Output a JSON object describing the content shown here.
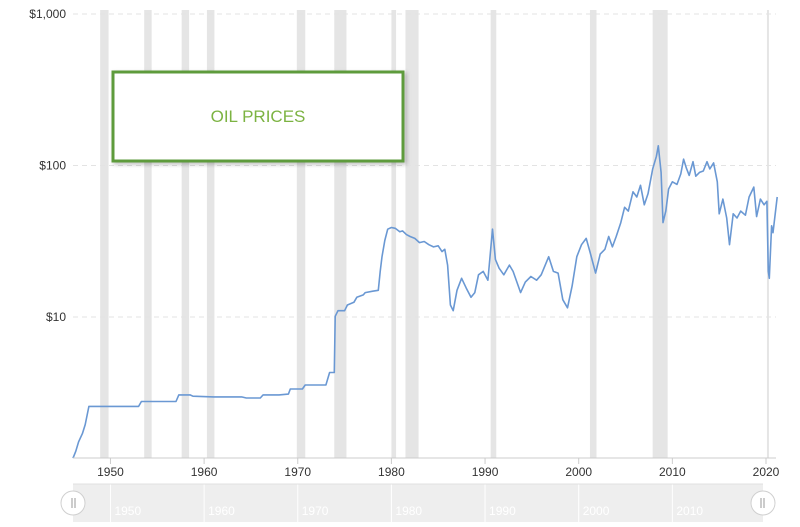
{
  "chart_data": {
    "type": "line",
    "title": "OIL PRICES",
    "xlabel": "",
    "ylabel": "",
    "y_scale": "log",
    "ylim": [
      1,
      1000
    ],
    "xlim": [
      1946,
      2020
    ],
    "y_ticks": [
      {
        "value": 1000,
        "label": "$1,000"
      },
      {
        "value": 100,
        "label": "$100"
      },
      {
        "value": 10,
        "label": "$10"
      }
    ],
    "x_ticks": [
      1950,
      1960,
      1970,
      1980,
      1990,
      2000,
      2010,
      2020
    ],
    "navigator_ticks": [
      1950,
      1960,
      1970,
      1980,
      1990,
      2000,
      2010
    ],
    "grid": true,
    "legend": "none",
    "colors": {
      "line": "#6a98d3",
      "recession": "#e5e5e5",
      "title_border": "#5e9b3c",
      "title_text": "#7cb342"
    },
    "recessions": [
      [
        1948.9,
        1949.8
      ],
      [
        1953.6,
        1954.4
      ],
      [
        1957.6,
        1958.4
      ],
      [
        1960.3,
        1961.1
      ],
      [
        1969.9,
        1970.8
      ],
      [
        1973.9,
        1975.2
      ],
      [
        1980.0,
        1980.5
      ],
      [
        1981.5,
        1982.9
      ],
      [
        1990.6,
        1991.2
      ],
      [
        2001.2,
        2001.9
      ],
      [
        2007.9,
        2009.5
      ],
      [
        2020.1,
        2020.4
      ]
    ],
    "series": [
      {
        "points": [
          [
            1946.0,
            1.17
          ],
          [
            1946.3,
            1.3
          ],
          [
            1946.6,
            1.5
          ],
          [
            1947.0,
            1.7
          ],
          [
            1947.3,
            1.95
          ],
          [
            1947.7,
            2.57
          ],
          [
            1953.0,
            2.57
          ],
          [
            1953.3,
            2.77
          ],
          [
            1957.0,
            2.77
          ],
          [
            1957.3,
            3.06
          ],
          [
            1958.5,
            3.06
          ],
          [
            1958.8,
            3.0
          ],
          [
            1961.0,
            2.97
          ],
          [
            1964.0,
            2.97
          ],
          [
            1964.5,
            2.92
          ],
          [
            1966.0,
            2.92
          ],
          [
            1966.3,
            3.06
          ],
          [
            1968.0,
            3.06
          ],
          [
            1969.0,
            3.1
          ],
          [
            1969.2,
            3.35
          ],
          [
            1970.5,
            3.35
          ],
          [
            1970.8,
            3.56
          ],
          [
            1973.0,
            3.56
          ],
          [
            1973.4,
            4.3
          ],
          [
            1973.9,
            4.3
          ],
          [
            1974.0,
            10.1
          ],
          [
            1974.3,
            11.0
          ],
          [
            1975.0,
            11.0
          ],
          [
            1975.3,
            12.0
          ],
          [
            1976.0,
            12.5
          ],
          [
            1976.3,
            13.5
          ],
          [
            1977.0,
            14.0
          ],
          [
            1977.2,
            14.5
          ],
          [
            1978.0,
            14.8
          ],
          [
            1978.6,
            15.0
          ],
          [
            1978.8,
            20.0
          ],
          [
            1979.0,
            25.0
          ],
          [
            1979.3,
            32.0
          ],
          [
            1979.6,
            38.0
          ],
          [
            1980.0,
            39.0
          ],
          [
            1980.4,
            38.5
          ],
          [
            1980.9,
            36.5
          ],
          [
            1981.2,
            37.0
          ],
          [
            1981.6,
            35.0
          ],
          [
            1982.0,
            34.0
          ],
          [
            1982.5,
            33.0
          ],
          [
            1983.0,
            31.0
          ],
          [
            1983.5,
            31.5
          ],
          [
            1984.0,
            30.0
          ],
          [
            1984.5,
            29.0
          ],
          [
            1985.0,
            29.5
          ],
          [
            1985.4,
            27.0
          ],
          [
            1985.7,
            28.0
          ],
          [
            1986.0,
            22.0
          ],
          [
            1986.3,
            12.0
          ],
          [
            1986.6,
            11.0
          ],
          [
            1987.0,
            15.0
          ],
          [
            1987.5,
            18.0
          ],
          [
            1988.0,
            15.5
          ],
          [
            1988.5,
            13.5
          ],
          [
            1988.9,
            14.5
          ],
          [
            1989.3,
            19.0
          ],
          [
            1989.8,
            20.0
          ],
          [
            1990.3,
            17.5
          ],
          [
            1990.8,
            38.0
          ],
          [
            1991.1,
            24.0
          ],
          [
            1991.5,
            21.0
          ],
          [
            1992.0,
            19.0
          ],
          [
            1992.6,
            22.0
          ],
          [
            1993.0,
            20.0
          ],
          [
            1993.8,
            14.5
          ],
          [
            1994.3,
            17.0
          ],
          [
            1994.9,
            18.5
          ],
          [
            1995.5,
            17.5
          ],
          [
            1996.0,
            19.0
          ],
          [
            1996.8,
            25.0
          ],
          [
            1997.3,
            20.0
          ],
          [
            1997.8,
            19.5
          ],
          [
            1998.3,
            13.0
          ],
          [
            1998.8,
            11.5
          ],
          [
            1999.3,
            16.0
          ],
          [
            1999.8,
            25.0
          ],
          [
            2000.3,
            30.0
          ],
          [
            2000.8,
            33.0
          ],
          [
            2001.2,
            27.0
          ],
          [
            2001.8,
            19.5
          ],
          [
            2002.3,
            26.0
          ],
          [
            2002.8,
            28.0
          ],
          [
            2003.2,
            34.0
          ],
          [
            2003.6,
            29.0
          ],
          [
            2004.0,
            34.0
          ],
          [
            2004.5,
            42.0
          ],
          [
            2004.9,
            53.0
          ],
          [
            2005.3,
            50.0
          ],
          [
            2005.8,
            67.0
          ],
          [
            2006.2,
            62.0
          ],
          [
            2006.6,
            74.0
          ],
          [
            2007.0,
            55.0
          ],
          [
            2007.4,
            65.0
          ],
          [
            2007.9,
            95.0
          ],
          [
            2008.3,
            115.0
          ],
          [
            2008.5,
            135.0
          ],
          [
            2008.8,
            90.0
          ],
          [
            2009.0,
            42.0
          ],
          [
            2009.3,
            50.0
          ],
          [
            2009.6,
            70.0
          ],
          [
            2010.0,
            78.0
          ],
          [
            2010.5,
            75.0
          ],
          [
            2010.9,
            88.0
          ],
          [
            2011.2,
            110.0
          ],
          [
            2011.5,
            96.0
          ],
          [
            2011.8,
            86.0
          ],
          [
            2012.2,
            106.0
          ],
          [
            2012.5,
            85.0
          ],
          [
            2012.9,
            90.0
          ],
          [
            2013.3,
            92.0
          ],
          [
            2013.7,
            106.0
          ],
          [
            2014.0,
            95.0
          ],
          [
            2014.4,
            104.0
          ],
          [
            2014.8,
            78.0
          ],
          [
            2015.0,
            48.0
          ],
          [
            2015.4,
            60.0
          ],
          [
            2015.8,
            45.0
          ],
          [
            2016.1,
            30.0
          ],
          [
            2016.5,
            48.0
          ],
          [
            2016.9,
            45.0
          ],
          [
            2017.3,
            50.0
          ],
          [
            2017.8,
            47.0
          ],
          [
            2018.2,
            62.0
          ],
          [
            2018.7,
            72.0
          ],
          [
            2019.0,
            46.0
          ],
          [
            2019.4,
            60.0
          ],
          [
            2019.8,
            55.0
          ],
          [
            2020.1,
            58.0
          ],
          [
            2020.25,
            20.0
          ],
          [
            2020.35,
            18.0
          ],
          [
            2020.6,
            40.0
          ],
          [
            2020.75,
            36.0
          ],
          [
            2021.2,
            62.0
          ]
        ]
      }
    ]
  }
}
